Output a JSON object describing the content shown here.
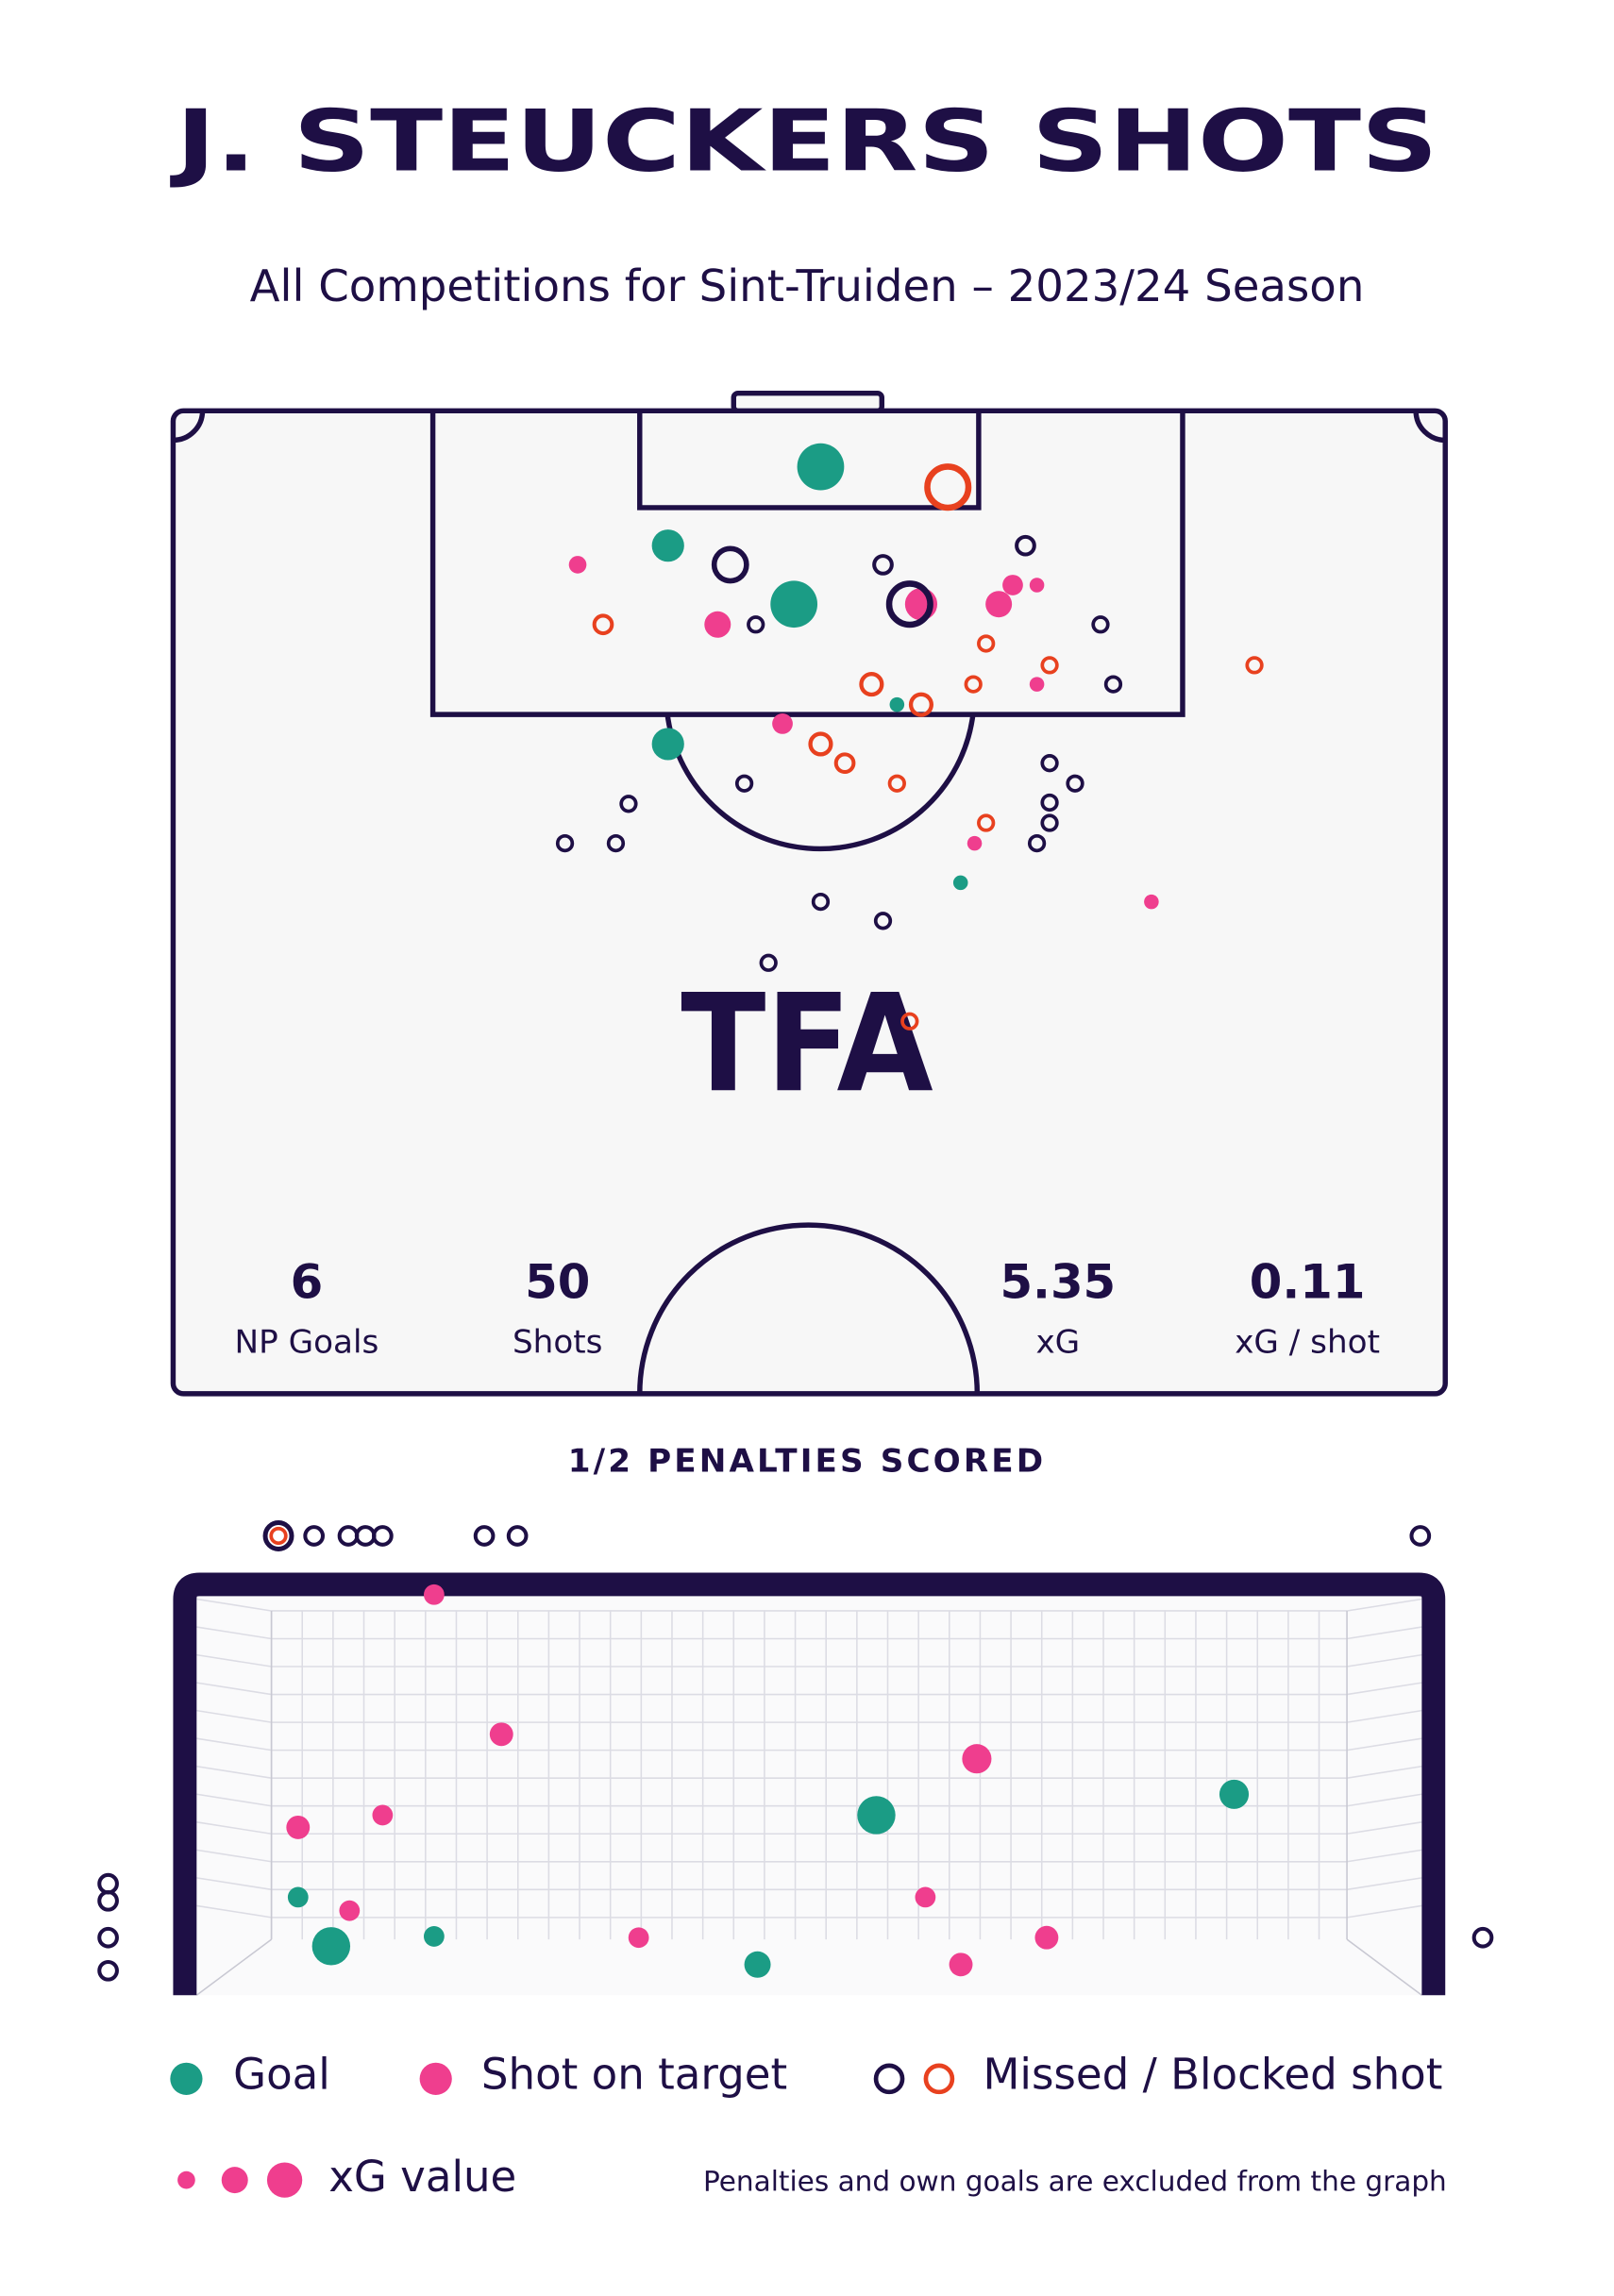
{
  "title": "J. STEUCKERS SHOTS",
  "subtitle": "All Competitions for Sint-Truiden – 2023/24 Season",
  "logo": "TFA",
  "stats": [
    {
      "value": 6,
      "label": "NP Goals"
    },
    {
      "value": 50,
      "label": "Shots"
    },
    {
      "value": 5.35,
      "label": "xG"
    },
    {
      "value": 0.11,
      "label": "xG / shot"
    }
  ],
  "penalties": "1/2 PENALTIES SCORED",
  "xg_legend": "xG value",
  "note": "Penalties and own goals are excluded from the graph",
  "series": [
    {
      "name": "Goal",
      "color": "#1b9c85",
      "filled": true,
      "pitch": [
        [
          50.9,
          4.4,
          0.3
        ],
        [
          38.9,
          10.6,
          0.175
        ],
        [
          48.8,
          15.2,
          0.3
        ],
        [
          38.9,
          26.2,
          0.175
        ],
        [
          56.9,
          23.1,
          0.025
        ],
        [
          61.9,
          37.1,
          0.025
        ]
      ],
      "goal": [
        [
          11.1,
          4.0,
          0.225
        ],
        [
          8.4,
          8.0,
          0.075
        ],
        [
          19.5,
          4.8,
          0.075
        ],
        [
          45.9,
          2.5,
          0.125
        ],
        [
          55.6,
          14.7,
          0.225
        ],
        [
          84.8,
          16.4,
          0.15
        ]
      ]
    },
    {
      "name": "Shot on target",
      "color": "#ef3e8e",
      "filled": true,
      "pitch": [
        [
          31.8,
          12.1,
          0.05
        ],
        [
          42.8,
          16.8,
          0.125
        ],
        [
          58.8,
          15.2,
          0.175
        ],
        [
          66.0,
          13.7,
          0.075
        ],
        [
          67.9,
          13.7,
          0.025
        ],
        [
          64.9,
          15.2,
          0.125
        ],
        [
          67.9,
          21.5,
          0.025
        ],
        [
          47.9,
          24.6,
          0.075
        ],
        [
          63.0,
          34.0,
          0.025
        ],
        [
          76.9,
          38.6,
          0.025
        ]
      ],
      "goal": [
        [
          19.5,
          32.7,
          0.075
        ],
        [
          25.0,
          21.3,
          0.1
        ],
        [
          8.4,
          13.7,
          0.1
        ],
        [
          15.3,
          14.7,
          0.075
        ],
        [
          12.6,
          6.9,
          0.075
        ],
        [
          36.2,
          4.7,
          0.075
        ],
        [
          59.6,
          8.0,
          0.075
        ],
        [
          62.5,
          2.5,
          0.1
        ],
        [
          69.5,
          4.7,
          0.1
        ],
        [
          63.8,
          19.3,
          0.15
        ]
      ]
    },
    {
      "name": "Missed / Blocked shot",
      "color": "#1e0f45",
      "filled": false,
      "pitch": [
        [
          43.8,
          12.1,
          0.175
        ],
        [
          55.8,
          12.1,
          0.05
        ],
        [
          67.0,
          10.6,
          0.05
        ],
        [
          45.8,
          16.8,
          0.025
        ],
        [
          57.9,
          15.2,
          0.25
        ],
        [
          72.9,
          16.8,
          0.025
        ],
        [
          73.9,
          21.5,
          0.025
        ],
        [
          68.9,
          27.7,
          0.025
        ],
        [
          70.9,
          29.3,
          0.025
        ],
        [
          68.9,
          30.8,
          0.025
        ],
        [
          68.9,
          32.4,
          0.025
        ],
        [
          67.9,
          34.0,
          0.025
        ],
        [
          44.9,
          29.3,
          0.025
        ],
        [
          35.8,
          30.9,
          0.025
        ],
        [
          30.8,
          34.0,
          0.025
        ],
        [
          34.8,
          34.0,
          0.025
        ],
        [
          50.9,
          38.6,
          0.025
        ],
        [
          55.8,
          40.1,
          0.025
        ],
        [
          46.8,
          43.4,
          0.025
        ]
      ],
      "goal": [
        [
          6.8,
          37.5,
          0.125
        ],
        [
          9.7,
          37.5,
          0.05
        ],
        [
          12.5,
          37.5,
          0.05
        ],
        [
          13.9,
          37.5,
          0.05
        ],
        [
          15.3,
          37.5,
          0.05
        ],
        [
          23.6,
          37.5,
          0.05
        ],
        [
          26.3,
          37.5,
          0.05
        ],
        [
          100.0,
          37.5,
          0.05
        ],
        [
          -7.1,
          9.1,
          0.05
        ],
        [
          -7.1,
          7.7,
          0.05
        ],
        [
          -7.1,
          4.7,
          0.05
        ],
        [
          -7.1,
          2.0,
          0.05
        ],
        [
          105.1,
          4.7,
          0.05
        ]
      ]
    },
    {
      "color": "#e8411f",
      "filled": false,
      "pitch": [
        [
          60.9,
          6.0,
          0.25
        ],
        [
          33.8,
          16.8,
          0.05
        ],
        [
          63.9,
          18.3,
          0.025
        ],
        [
          68.9,
          20.0,
          0.025
        ],
        [
          62.9,
          21.5,
          0.025
        ],
        [
          54.9,
          21.5,
          0.075
        ],
        [
          58.8,
          23.1,
          0.075
        ],
        [
          50.9,
          26.2,
          0.075
        ],
        [
          52.8,
          27.7,
          0.05
        ],
        [
          56.9,
          29.3,
          0.025
        ],
        [
          63.9,
          32.4,
          0.025
        ],
        [
          57.9,
          48.0,
          0.025
        ],
        [
          85.0,
          20.0,
          0.025
        ]
      ],
      "goal": [
        [
          6.8,
          37.5,
          0.025
        ]
      ]
    }
  ]
}
